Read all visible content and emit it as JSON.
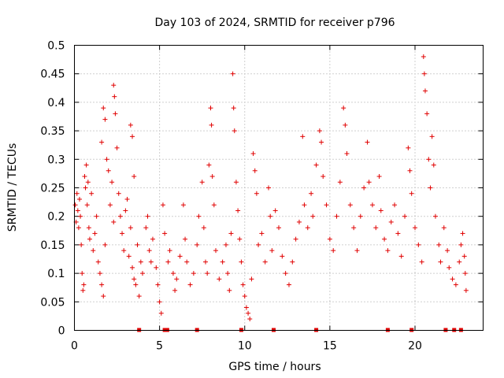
{
  "chart_data": {
    "type": "scatter",
    "title": "Day 103 of 2024, SRMTID for receiver p796",
    "xlabel": "GPS time / hours",
    "ylabel": "SRMTID / TECUs",
    "xlim": [
      0,
      24
    ],
    "ylim": [
      0,
      0.5
    ],
    "x_ticks": [
      0,
      5,
      10,
      15,
      20
    ],
    "y_ticks": [
      0,
      0.05,
      0.1,
      0.15,
      0.2,
      0.25,
      0.3,
      0.35,
      0.4,
      0.45,
      0.5
    ],
    "x_tick_labels": [
      "0",
      "5",
      "10",
      "15",
      "20"
    ],
    "y_tick_labels": [
      "0",
      "0.05",
      "0.1",
      "0.15",
      "0.2",
      "0.25",
      "0.3",
      "0.35",
      "0.4",
      "0.45",
      "0.5"
    ],
    "grid": true,
    "marker": "+",
    "color": "#e00000",
    "series": [
      {
        "name": "SRMTID",
        "points": [
          [
            0.05,
            0.22
          ],
          [
            0.1,
            0.19
          ],
          [
            0.15,
            0.24
          ],
          [
            0.2,
            0.21
          ],
          [
            0.25,
            0.18
          ],
          [
            0.3,
            0.23
          ],
          [
            0.35,
            0.2
          ],
          [
            0.4,
            0.15
          ],
          [
            0.45,
            0.1
          ],
          [
            0.5,
            0.07
          ],
          [
            0.55,
            0.08
          ],
          [
            0.6,
            0.27
          ],
          [
            0.65,
            0.25
          ],
          [
            0.7,
            0.29
          ],
          [
            0.75,
            0.22
          ],
          [
            0.8,
            0.26
          ],
          [
            0.85,
            0.18
          ],
          [
            0.9,
            0.16
          ],
          [
            1.0,
            0.24
          ],
          [
            1.1,
            0.14
          ],
          [
            1.2,
            0.17
          ],
          [
            1.3,
            0.2
          ],
          [
            1.4,
            0.12
          ],
          [
            1.5,
            0.1
          ],
          [
            1.6,
            0.08
          ],
          [
            1.7,
            0.06
          ],
          [
            1.8,
            0.15
          ],
          [
            1.6,
            0.33
          ],
          [
            1.7,
            0.39
          ],
          [
            1.8,
            0.37
          ],
          [
            1.9,
            0.3
          ],
          [
            2.0,
            0.28
          ],
          [
            2.1,
            0.22
          ],
          [
            2.2,
            0.26
          ],
          [
            2.3,
            0.19
          ],
          [
            2.3,
            0.43
          ],
          [
            2.35,
            0.41
          ],
          [
            2.4,
            0.38
          ],
          [
            2.5,
            0.32
          ],
          [
            2.6,
            0.24
          ],
          [
            2.7,
            0.2
          ],
          [
            2.8,
            0.17
          ],
          [
            2.9,
            0.14
          ],
          [
            3.0,
            0.21
          ],
          [
            3.1,
            0.23
          ],
          [
            3.2,
            0.13
          ],
          [
            3.3,
            0.18
          ],
          [
            3.4,
            0.11
          ],
          [
            3.5,
            0.09
          ],
          [
            3.6,
            0.08
          ],
          [
            3.3,
            0.36
          ],
          [
            3.4,
            0.34
          ],
          [
            3.5,
            0.27
          ],
          [
            3.7,
            0.15
          ],
          [
            3.8,
            0.06
          ],
          [
            3.9,
            0.12
          ],
          [
            4.0,
            0.1
          ],
          [
            4.2,
            0.18
          ],
          [
            4.3,
            0.2
          ],
          [
            4.4,
            0.14
          ],
          [
            4.5,
            0.12
          ],
          [
            4.6,
            0.16
          ],
          [
            4.8,
            0.11
          ],
          [
            4.9,
            0.08
          ],
          [
            5.0,
            0.05
          ],
          [
            5.1,
            0.03
          ],
          [
            5.2,
            0.22
          ],
          [
            5.3,
            0.17
          ],
          [
            5.5,
            0.12
          ],
          [
            5.6,
            0.14
          ],
          [
            5.8,
            0.1
          ],
          [
            5.9,
            0.07
          ],
          [
            6.0,
            0.09
          ],
          [
            6.2,
            0.13
          ],
          [
            6.4,
            0.22
          ],
          [
            6.5,
            0.16
          ],
          [
            6.6,
            0.12
          ],
          [
            6.8,
            0.08
          ],
          [
            7.0,
            0.1
          ],
          [
            7.2,
            0.15
          ],
          [
            7.3,
            0.2
          ],
          [
            7.5,
            0.26
          ],
          [
            7.6,
            0.18
          ],
          [
            7.7,
            0.12
          ],
          [
            7.8,
            0.1
          ],
          [
            7.9,
            0.29
          ],
          [
            8.0,
            0.39
          ],
          [
            8.05,
            0.36
          ],
          [
            8.1,
            0.27
          ],
          [
            8.2,
            0.22
          ],
          [
            8.3,
            0.14
          ],
          [
            8.5,
            0.09
          ],
          [
            8.7,
            0.12
          ],
          [
            8.9,
            0.15
          ],
          [
            9.0,
            0.1
          ],
          [
            9.1,
            0.07
          ],
          [
            9.2,
            0.17
          ],
          [
            9.3,
            0.45
          ],
          [
            9.35,
            0.39
          ],
          [
            9.4,
            0.35
          ],
          [
            9.5,
            0.26
          ],
          [
            9.6,
            0.21
          ],
          [
            9.7,
            0.16
          ],
          [
            9.8,
            0.12
          ],
          [
            9.9,
            0.08
          ],
          [
            10.0,
            0.06
          ],
          [
            10.1,
            0.04
          ],
          [
            10.2,
            0.03
          ],
          [
            10.3,
            0.02
          ],
          [
            10.4,
            0.09
          ],
          [
            10.5,
            0.31
          ],
          [
            10.6,
            0.28
          ],
          [
            10.7,
            0.24
          ],
          [
            10.8,
            0.15
          ],
          [
            11.0,
            0.17
          ],
          [
            11.2,
            0.12
          ],
          [
            11.4,
            0.25
          ],
          [
            11.5,
            0.2
          ],
          [
            11.6,
            0.14
          ],
          [
            11.8,
            0.21
          ],
          [
            12.0,
            0.18
          ],
          [
            12.2,
            0.13
          ],
          [
            12.4,
            0.1
          ],
          [
            12.6,
            0.08
          ],
          [
            12.8,
            0.12
          ],
          [
            13.0,
            0.16
          ],
          [
            13.2,
            0.19
          ],
          [
            13.4,
            0.34
          ],
          [
            13.5,
            0.22
          ],
          [
            13.7,
            0.18
          ],
          [
            13.9,
            0.24
          ],
          [
            14.0,
            0.2
          ],
          [
            14.2,
            0.29
          ],
          [
            14.4,
            0.35
          ],
          [
            14.5,
            0.33
          ],
          [
            14.6,
            0.27
          ],
          [
            14.8,
            0.22
          ],
          [
            15.0,
            0.16
          ],
          [
            15.2,
            0.14
          ],
          [
            15.4,
            0.2
          ],
          [
            15.6,
            0.26
          ],
          [
            15.8,
            0.39
          ],
          [
            15.9,
            0.36
          ],
          [
            16.0,
            0.31
          ],
          [
            16.2,
            0.22
          ],
          [
            16.4,
            0.18
          ],
          [
            16.6,
            0.14
          ],
          [
            16.8,
            0.2
          ],
          [
            17.0,
            0.25
          ],
          [
            17.2,
            0.33
          ],
          [
            17.3,
            0.26
          ],
          [
            17.5,
            0.22
          ],
          [
            17.7,
            0.18
          ],
          [
            17.9,
            0.27
          ],
          [
            18.0,
            0.21
          ],
          [
            18.2,
            0.16
          ],
          [
            18.4,
            0.14
          ],
          [
            18.6,
            0.19
          ],
          [
            18.8,
            0.22
          ],
          [
            19.0,
            0.17
          ],
          [
            19.2,
            0.13
          ],
          [
            19.4,
            0.2
          ],
          [
            19.6,
            0.32
          ],
          [
            19.7,
            0.28
          ],
          [
            19.8,
            0.24
          ],
          [
            20.0,
            0.18
          ],
          [
            20.2,
            0.15
          ],
          [
            20.4,
            0.12
          ],
          [
            20.5,
            0.48
          ],
          [
            20.55,
            0.45
          ],
          [
            20.6,
            0.42
          ],
          [
            20.7,
            0.38
          ],
          [
            20.8,
            0.3
          ],
          [
            20.9,
            0.25
          ],
          [
            21.0,
            0.34
          ],
          [
            21.1,
            0.29
          ],
          [
            21.2,
            0.2
          ],
          [
            21.4,
            0.15
          ],
          [
            21.5,
            0.12
          ],
          [
            21.7,
            0.18
          ],
          [
            21.9,
            0.14
          ],
          [
            22.0,
            0.11
          ],
          [
            22.2,
            0.09
          ],
          [
            22.4,
            0.08
          ],
          [
            22.6,
            0.12
          ],
          [
            22.7,
            0.15
          ],
          [
            22.8,
            0.17
          ],
          [
            22.9,
            0.13
          ],
          [
            22.95,
            0.1
          ],
          [
            23.0,
            0.07
          ]
        ]
      }
    ],
    "zero_markers_x": [
      3.8,
      5.3,
      5.45,
      7.2,
      9.8,
      11.7,
      14.2,
      18.4,
      19.8,
      21.8,
      22.3,
      22.7
    ]
  }
}
